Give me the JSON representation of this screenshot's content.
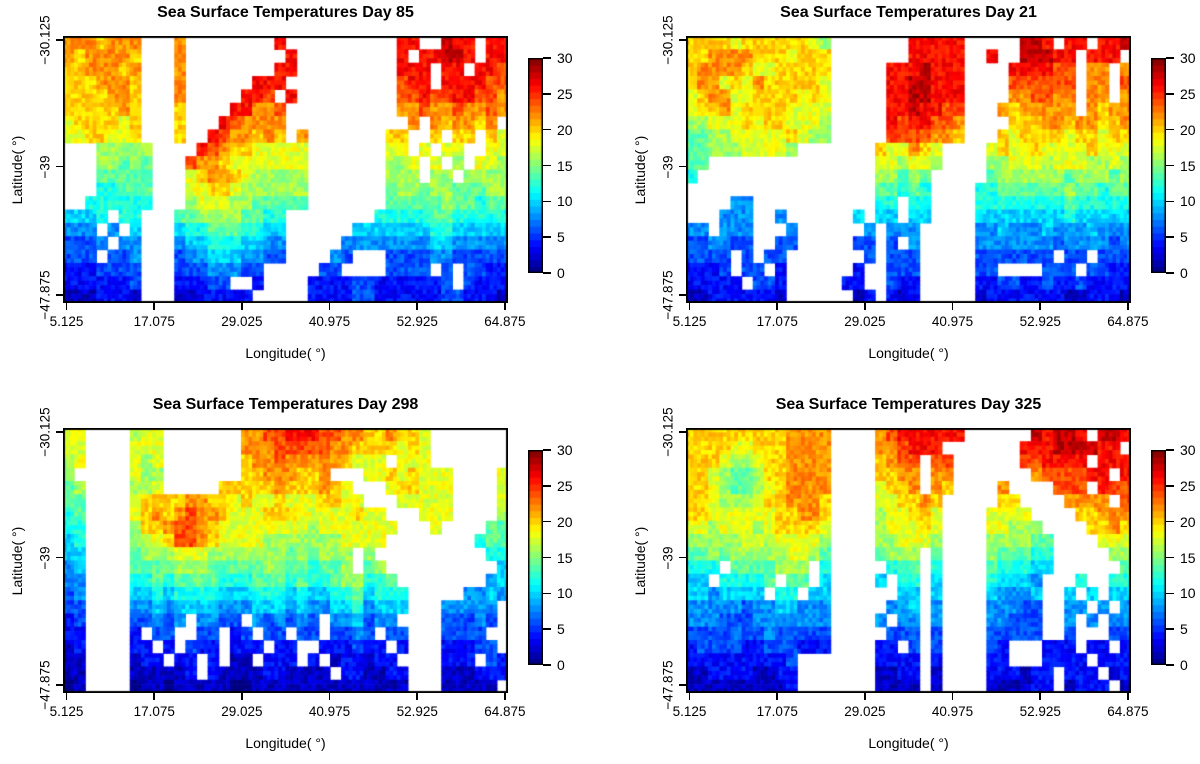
{
  "grid_encoding": {
    "levels": "0123456789abcdef",
    "celsius_per_level": 2,
    "missing_char": ".",
    "missing_meaning": "no data (rendered white)",
    "rows": 20,
    "cols": 40,
    "row_order": "north (lat -30.125) at top to south (lat -47.875) at bottom"
  },
  "chart_data": [
    {
      "type": "heatmap",
      "day": 85,
      "title": "Sea Surface Temperatures Day 85",
      "xlabel": "Longitude( °)",
      "ylabel": "Latitude( °)",
      "x_ticks": [
        "5.125",
        "17.075",
        "29.025",
        "40.975",
        "52.925",
        "64.875"
      ],
      "y_ticks": [
        "−30.125",
        "−39",
        "−47.875"
      ],
      "x_range_deg": [
        5.125,
        64.875
      ],
      "y_range_deg": [
        -47.875,
        -30.125
      ],
      "value_unit": "°C",
      "value_range": [
        0,
        30
      ],
      "colorbar_ticks": [
        0,
        5,
        10,
        15,
        20,
        25,
        30
      ],
      "colormap": "jet",
      "grid": [
        "bbbabbb...b........d..........dd..edd.dd",
        "babbbba...b.........d.........d.ddeed.dd",
        "aabbbab...b........dd.........ddd.dd.ddc",
        "aaabbba...b......ddd..........cdd.ddddcc",
        "aaaabba...b.....ddc.d.........ccdccddccb",
        "aaaaaba...a....ddbbc..........bbcbbcbbcb",
        "9aaaa9a...a...dcbbbb...........b.babbab.",
        "99aa99a...a..dcbbaba.b.......aa..a.aa.a9",
        "...88888....dcbaa99999.......99.9.99..99",
        "...88787...cbba9999999.......889.9.8.998",
        "...77777...9abba988888.......888.88.8888",
        "...66777...99aa9888888.......78878877788",
        "..666666...89998877777.......77777877677",
        "5556.66...7788887766........666667766666",
        "444.4.5...5667776655......55555556655555",
        "3334.44...4556665544.....444444445544444",
        "333.334...3445554433....43...33334433333",
        "2223333...33344433.....33....3333.3.3322",
        "2222223...22233..2....2222332222223.3222",
        "1112221...1122222.....222233222222332221"
      ]
    },
    {
      "type": "heatmap",
      "day": 21,
      "title": "Sea Surface Temperatures Day 21",
      "xlabel": "Longitude( °)",
      "ylabel": "Latitude( °)",
      "x_ticks": [
        "5.125",
        "17.075",
        "29.025",
        "40.975",
        "52.925",
        "64.875"
      ],
      "y_ticks": [
        "−30.125",
        "−39",
        "−47.875"
      ],
      "x_range_deg": [
        5.125,
        64.875
      ],
      "y_range_deg": [
        -47.875,
        -30.125
      ],
      "value_unit": "°C",
      "value_range": [
        0,
        30
      ],
      "colorbar_ticks": [
        0,
        5,
        10,
        15,
        20,
        25,
        30
      ],
      "colormap": "jet",
      "grid": [
        "aaaa9aaaaaa98.......ddddd.....eed.dd.dde",
        "aabbbbaaa9aaa.......ddddd..d..eeedd.ddd.",
        "abbbba99aaaaa.....dddeddd....ddddcc.bb.b",
        "abb9a9baaaaa9.....ddeeddd....cccccc.bb.c",
        "9abb99aaaa9a9.....ddeeddd....bbccbb.bb.b",
        "9aab9aaaa9999.....ddeddcc...babbbbb.babb",
        "88999a9aa9998.....dcddccb....aaabbabbaab",
        "778899999a988.....ccccbba...a9aaaa9aa9aa",
        "7788899998.......a99ba9....9a99a9999a999",
        "77...............998998....8899989998898",
        "6................88787.....7888888788878",
        ".................77676....66777777877677",
        "....44...........66.66....66666666766666",
        "...444..4......5.55.55....55555555655555",
        "44.444...4......4.444.....44544454445444",
        "334433..33.....33.3.4.....44444443444434",
        "3333.3.33.......3.333.....3333333.33.333",
        "2223.33.2......2..333.....33....333.3322",
        "22222.332.....22..322.....22332232232222",
        "112222221......12.212.....12222222112221"
      ]
    },
    {
      "type": "heatmap",
      "day": 298,
      "title": "Sea Surface Temperatures Day 298",
      "xlabel": "Longitude( °)",
      "ylabel": "Latitude( °)",
      "x_ticks": [
        "5.125",
        "17.075",
        "29.025",
        "40.975",
        "52.925",
        "64.875"
      ],
      "y_ticks": [
        "−30.125",
        "−39",
        "−47.875"
      ],
      "x_range_deg": [
        5.125,
        64.875
      ],
      "y_range_deg": [
        -47.875,
        -30.125
      ],
      "value_unit": "°C",
      "value_range": [
        0,
        30
      ],
      "colorbar_ticks": [
        0,
        5,
        10,
        15,
        20,
        25,
        30
      ],
      "colormap": "jet",
      "grid": [
        "99....899.......bbccdddccbbaabaa9.......",
        "99....999.......bbbcccccbbaaaa9a9.......",
        "89....989.......abbcbbbbba999.999.......",
        "8.....988.......aabbbaab...99a9a999....9",
        "78....889.....aaaaabaaaba9...9aa999....9",
        "77....9aaaabbaa9a99a999aa99...99999....9",
        "67....9ababcbba999aaa99999a99...999....8",
        "66....8aabccba9999999989999999...9....77",
        "56....889accba999988888889999........677",
        "55....78889998888888787888.8..........66",
        "45....77778887777788776778.78..........5",
        "44....667677776667776766788667........45",
        "34....5565666655566656556675666.....4454",
        "33....4454555544455545445564555...44444.",
        "23....33434.4433.434343.445344....33343.",
        "22....2.33..33.23.33.33.3343.33...3333..",
        "12....22.2.322.222.22..222322.2...22233.",
        "11....122.22.2.11.222.2.122122....222.32",
        "11....111112.21111221111.221122...111222",
        "01....0110111110011111111111111...11111."
      ]
    },
    {
      "type": "heatmap",
      "day": 325,
      "title": "Sea Surface Temperatures Day 325",
      "xlabel": "Longitude( °)",
      "ylabel": "Latitude( °)",
      "x_ticks": [
        "5.125",
        "17.075",
        "29.025",
        "40.975",
        "52.925",
        "64.875"
      ],
      "y_ticks": [
        "−30.125",
        "−39",
        "−47.875"
      ],
      "x_range_deg": [
        5.125,
        64.875
      ],
      "y_range_deg": [
        -47.875,
        -30.125
      ],
      "value_unit": "°C",
      "value_range": [
        0,
        30
      ],
      "colorbar_ticks": [
        0,
        5,
        10,
        15,
        20,
        25,
        30
      ],
      "colormap": "jet",
      "grid": [
        "aaaaaaaaabbbb....bcdddddd......edeed.eed",
        "aaaa99aaabbbb....bbcddd.......dddeeeedd.",
        "aaa9889aabbbb....abcc.cc......ccdddd.ddd",
        "aa98778aabbbb....aabb.bb.......bccccdd.d",
        "aa987789abbbb....9aab.ba....b....ccc.dcc",
        "aa98889aabbba....99aaba.....aa....bbbb.c",
        "aa999999aabba....899aa9....9999....aabbb",
        "99899989aaaa9....8999a9....99888....aaba",
        "8888899899998....889998....888877....999",
        "7787888889987....7888.7....877766.....88",
        "666.7777888.6.....677.6....766655......7",
        "55.66667.77.5....5.66.5....65554...6..66",
        "5545555.66.55......55.5....54445..5.5.55",
        "4444434455444.....445.4....44433..44.4.4",
        "4443334444444....4.44.4....44333..4.4.44",
        "3333433433333.....333.3....33333..3...33",
        "2333322333222....22.3.3....32...222.22.2",
        "2222222223.......2222.2....22...2222.222",
        "1122221122.......1122.1....222122.222.12",
        "1111111112.......1111.1....111122.1222.1"
      ]
    }
  ]
}
